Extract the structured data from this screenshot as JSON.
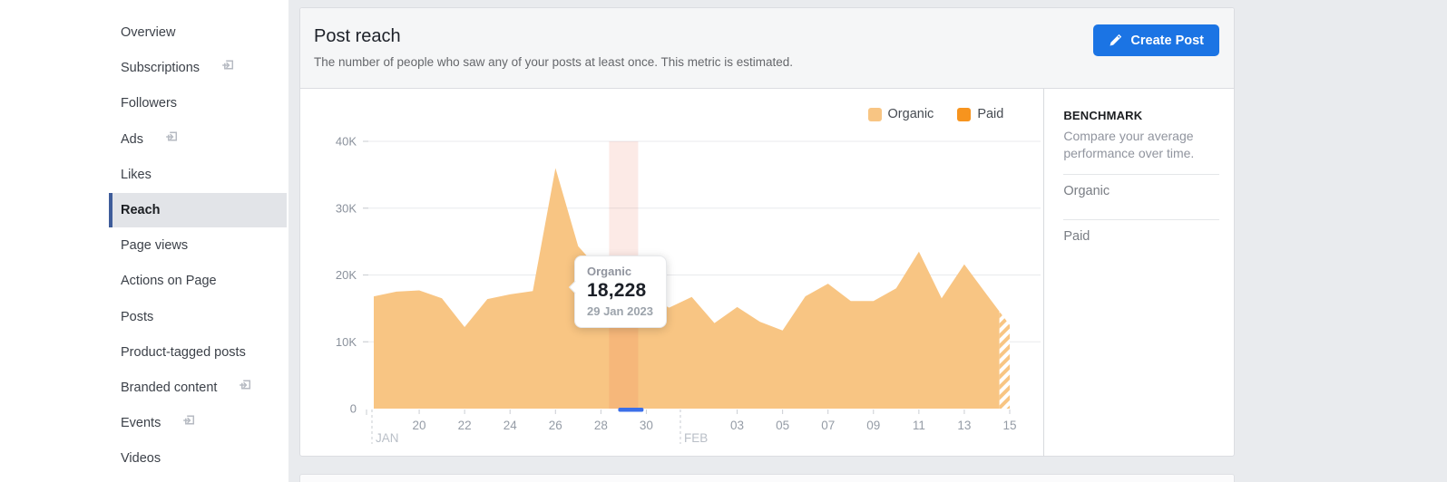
{
  "colors": {
    "accent_blue": "#1B74E4",
    "organic": "#F8C583",
    "paid": "#F7941E",
    "hover_band": "rgba(232,93,63,0.13)",
    "date_indicator_blue": "#3B6FE8",
    "selected_item_bar": "#3E5C9A"
  },
  "sidebar": {
    "items": [
      {
        "label": "Overview",
        "external": false,
        "selected": false
      },
      {
        "label": "Subscriptions",
        "external": true,
        "selected": false
      },
      {
        "label": "Followers",
        "external": false,
        "selected": false
      },
      {
        "label": "Ads",
        "external": true,
        "selected": false
      },
      {
        "label": "Likes",
        "external": false,
        "selected": false
      },
      {
        "label": "Reach",
        "external": false,
        "selected": true
      },
      {
        "label": "Page views",
        "external": false,
        "selected": false
      },
      {
        "label": "Actions on Page",
        "external": false,
        "selected": false
      },
      {
        "label": "Posts",
        "external": false,
        "selected": false
      },
      {
        "label": "Product-tagged posts",
        "external": false,
        "selected": false
      },
      {
        "label": "Branded content",
        "external": true,
        "selected": false
      },
      {
        "label": "Events",
        "external": true,
        "selected": false
      },
      {
        "label": "Videos",
        "external": false,
        "selected": false
      }
    ]
  },
  "header": {
    "title": "Post reach",
    "subtitle": "The number of people who saw any of your posts at least once. This metric is estimated.",
    "create_post_label": "Create Post"
  },
  "legend": {
    "organic": "Organic",
    "paid": "Paid"
  },
  "benchmark": {
    "heading": "BENCHMARK",
    "description": "Compare your average performance over time.",
    "rows": [
      "Organic",
      "Paid"
    ]
  },
  "tooltip": {
    "series": "Organic",
    "value": "18,228",
    "date": "29 Jan 2023"
  },
  "chart_data": {
    "type": "area",
    "title": "Post reach",
    "ylim": [
      0,
      40000
    ],
    "y_ticks": [
      0,
      10000,
      20000,
      30000,
      40000
    ],
    "y_tick_labels": [
      "0",
      "10K",
      "20K",
      "30K",
      "40K"
    ],
    "grid": "horizontal",
    "legend_position": "top-right",
    "x": [
      "18 Jan",
      "19 Jan",
      "20 Jan",
      "21 Jan",
      "22 Jan",
      "23 Jan",
      "24 Jan",
      "25 Jan",
      "26 Jan",
      "27 Jan",
      "28 Jan",
      "29 Jan",
      "30 Jan",
      "31 Jan",
      "01 Feb",
      "02 Feb",
      "03 Feb",
      "04 Feb",
      "05 Feb",
      "06 Feb",
      "07 Feb",
      "08 Feb",
      "09 Feb",
      "10 Feb",
      "11 Feb",
      "12 Feb",
      "13 Feb",
      "14 Feb",
      "15 Feb"
    ],
    "series": [
      {
        "name": "Organic",
        "color": "#F8C583",
        "values": [
          16800,
          17500,
          17700,
          16500,
          12200,
          16400,
          17100,
          17600,
          36000,
          24300,
          20500,
          18228,
          17000,
          15100,
          16700,
          12800,
          15200,
          13000,
          11700,
          16800,
          18700,
          16100,
          16100,
          18000,
          23500,
          16500,
          21600,
          17000,
          12500
        ]
      },
      {
        "name": "Paid",
        "color": "#F7941E",
        "values": [
          0,
          0,
          0,
          0,
          0,
          0,
          0,
          0,
          0,
          0,
          0,
          0,
          0,
          0,
          0,
          0,
          0,
          0,
          0,
          0,
          0,
          0,
          0,
          0,
          0,
          0,
          0,
          0,
          0
        ]
      }
    ],
    "x_axis": {
      "jan": {
        "label": "JAN",
        "ticks": [
          "20",
          "22",
          "24",
          "26",
          "28",
          "30"
        ]
      },
      "feb": {
        "label": "FEB",
        "ticks": [
          "03",
          "05",
          "07",
          "09",
          "11",
          "13",
          "15"
        ]
      }
    },
    "hover": {
      "index": 11,
      "series": "Organic",
      "value": 18228,
      "date": "29 Jan 2023"
    },
    "partial_last_point_hatched": true
  }
}
